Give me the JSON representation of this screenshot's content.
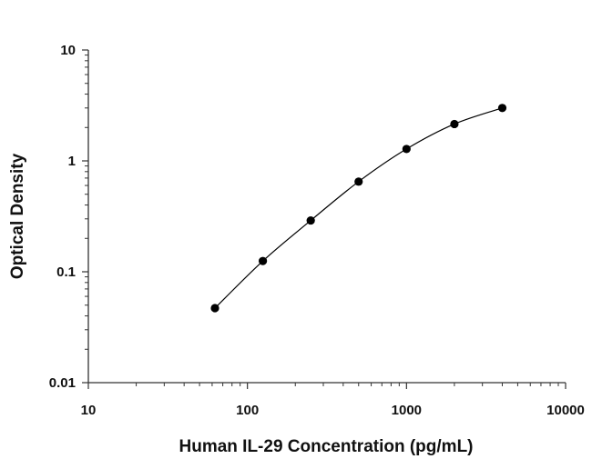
{
  "chart_data": {
    "type": "scatter",
    "xlabel": "Human IL-29 Concentration (pg/mL)",
    "ylabel": "Optical Density",
    "xscale": "log",
    "yscale": "log",
    "xlim": [
      10,
      10000
    ],
    "ylim": [
      0.01,
      10
    ],
    "x_tick_labels": [
      "10",
      "100",
      "1000",
      "10000"
    ],
    "y_tick_labels": [
      "10",
      "1",
      "0.1",
      "0.01"
    ],
    "grid": false,
    "legend": "none",
    "colors": {
      "points": "#000000",
      "curve": "#000000",
      "axes": "#333333"
    },
    "series": [
      {
        "points": [
          {
            "x": 62.5,
            "y": 0.047
          },
          {
            "x": 125,
            "y": 0.125
          },
          {
            "x": 250,
            "y": 0.29
          },
          {
            "x": 500,
            "y": 0.65
          },
          {
            "x": 1000,
            "y": 1.28
          },
          {
            "x": 2000,
            "y": 2.15
          },
          {
            "x": 4000,
            "y": 3.0
          }
        ]
      }
    ]
  }
}
